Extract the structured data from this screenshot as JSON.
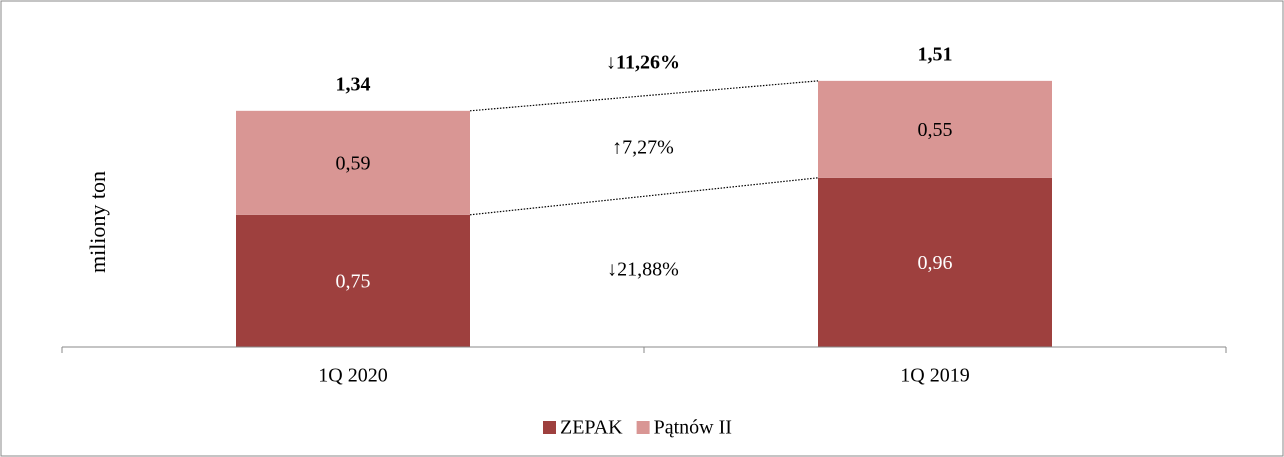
{
  "chart_data": {
    "type": "stacked-bar",
    "ylabel": "miliony ton",
    "categories": [
      "1Q 2020",
      "1Q 2019"
    ],
    "series": [
      {
        "name": "ZEPAK",
        "color": "#9e403e",
        "values": [
          0.75,
          0.96
        ],
        "value_labels": [
          "0,75",
          "0,96"
        ]
      },
      {
        "name": "Pątnów II",
        "color": "#d99694",
        "values": [
          0.59,
          0.55
        ],
        "value_labels": [
          "0,59",
          "0,55"
        ]
      }
    ],
    "totals": [
      1.34,
      1.51
    ],
    "total_labels": [
      "1,34",
      "1,51"
    ],
    "annotations": [
      "↓11,26%",
      "↑7,27%",
      "↓21,88%"
    ],
    "ylim": [
      0,
      1.6
    ],
    "legend": "bottom"
  }
}
